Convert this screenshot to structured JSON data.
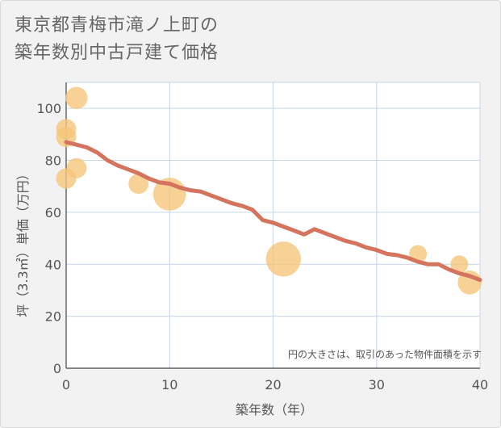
{
  "title_line1": "東京都青梅市滝ノ上町の",
  "title_line2": "築年数別中古戸建て価格",
  "chart_data": {
    "type": "scatter",
    "xlabel": "築年数（年）",
    "ylabel": "坪（3.3㎡）単価（万円）",
    "xlim": [
      0,
      40
    ],
    "ylim": [
      0,
      110
    ],
    "xticks": [
      0,
      10,
      20,
      30,
      40
    ],
    "yticks": [
      0,
      20,
      40,
      60,
      80,
      100
    ],
    "grid": true,
    "note": "円の大きさは、取引のあった物件面積を示す",
    "colors": {
      "bubble": "#f5c57a",
      "trend": "#d4735e",
      "grid": "#c8d6e5"
    },
    "bubbles": [
      {
        "x": 0,
        "y": 92,
        "size": 3
      },
      {
        "x": 0,
        "y": 89,
        "size": 3
      },
      {
        "x": 0,
        "y": 73,
        "size": 3
      },
      {
        "x": 1,
        "y": 104,
        "size": 4
      },
      {
        "x": 1,
        "y": 77,
        "size": 3
      },
      {
        "x": 7,
        "y": 71,
        "size": 3
      },
      {
        "x": 10,
        "y": 67,
        "size": 12
      },
      {
        "x": 21,
        "y": 42,
        "size": 14
      },
      {
        "x": 34,
        "y": 44,
        "size": 2
      },
      {
        "x": 38,
        "y": 40,
        "size": 2
      },
      {
        "x": 39,
        "y": 33,
        "size": 5
      }
    ],
    "trend": {
      "x": [
        0,
        1,
        2,
        3,
        4,
        5,
        6,
        7,
        8,
        9,
        10,
        11,
        12,
        13,
        14,
        15,
        16,
        17,
        18,
        19,
        20,
        21,
        22,
        23,
        24,
        25,
        26,
        27,
        28,
        29,
        30,
        31,
        32,
        33,
        34,
        35,
        36,
        37,
        38,
        39,
        40
      ],
      "y": [
        87,
        86,
        85,
        83,
        80,
        78,
        76.5,
        75,
        73,
        71.5,
        71,
        69.5,
        68.5,
        68,
        66.5,
        65,
        63.5,
        62.5,
        61,
        57,
        56,
        54.5,
        53,
        51.5,
        53.5,
        52,
        50.5,
        49,
        48,
        46.5,
        45.5,
        44,
        43.5,
        42.5,
        41,
        40,
        40,
        38,
        36.5,
        35.5,
        34
      ]
    }
  }
}
